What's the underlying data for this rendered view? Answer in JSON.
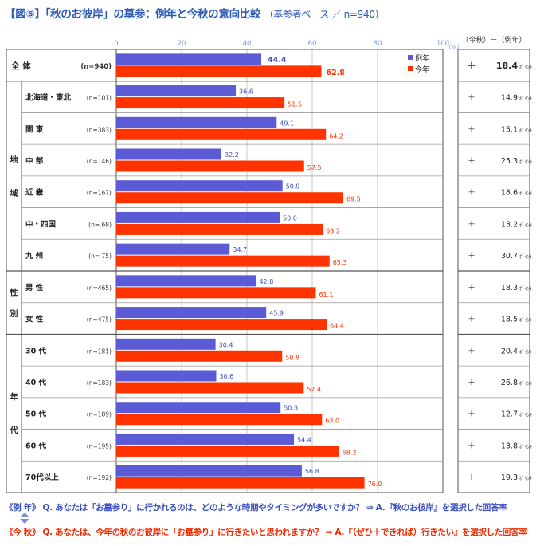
{
  "title": {
    "main": "【図⑤】「秋のお彼岸」の墓参：例年と今秋の意向比較",
    "sub": "（基参者ベース ／ n=940）"
  },
  "header_diff": "（今秋）－（例年）",
  "axis_unit": "（%）",
  "diff_unit": "ﾎﾟｲﾝﾄ",
  "diff_sign": "＋",
  "notes": {
    "line1_tag": "《例 年》",
    "line1_text": "Q. あなたは「お墓参り」に行かれるのは、どのような時期やタイミングが多いですか？ ⇒ A.『秋のお彼岸』を選択した回答率",
    "line2_tag": "《今 秋》",
    "line2_text": "Q. あなたは、今年の秋のお彼岸に「お墓参り」に行きたいと思われますか？ ⇒ A.『（ぜひ＋できれば）行きたい』を選択した回答率"
  },
  "colors": {
    "usual": "#5b5bd6",
    "this_fall": "#ff3300",
    "title": "#2c59b8",
    "usual_text": "#3a4fc0",
    "grid": "#c8c8c8",
    "border": "#555555"
  },
  "chart_data": {
    "type": "bar",
    "orientation": "horizontal",
    "xlim": [
      0,
      100
    ],
    "xticks": [
      0,
      20,
      40,
      60,
      80,
      100
    ],
    "legend": {
      "position": "top-right",
      "entries": [
        "例年",
        "今年"
      ]
    },
    "groups": [
      {
        "label": "",
        "rows": [
          0
        ]
      },
      {
        "label": "地域",
        "rows": [
          1,
          2,
          3,
          4,
          5,
          6
        ]
      },
      {
        "label": "性別",
        "rows": [
          7,
          8
        ]
      },
      {
        "label": "年代",
        "rows": [
          9,
          10,
          11,
          12,
          13
        ]
      }
    ],
    "categories": [
      {
        "label": "全 体",
        "n": "(n=940)",
        "total": true
      },
      {
        "label": "北海道・東北",
        "n": "(n=101)"
      },
      {
        "label": "関 東",
        "n": "(n=383)"
      },
      {
        "label": "中 部",
        "n": "(n=146)"
      },
      {
        "label": "近 畿",
        "n": "(n=167)"
      },
      {
        "label": "中・四国",
        "n": "(n= 68)"
      },
      {
        "label": "九 州",
        "n": "(n= 75)"
      },
      {
        "label": "男 性",
        "n": "(n=465)"
      },
      {
        "label": "女 性",
        "n": "(n=475)"
      },
      {
        "label": "30 代",
        "n": "(n=181)"
      },
      {
        "label": "40 代",
        "n": "(n=183)"
      },
      {
        "label": "50 代",
        "n": "(n=189)"
      },
      {
        "label": "60 代",
        "n": "(n=195)"
      },
      {
        "label": "70代以上",
        "n": "(n=192)"
      }
    ],
    "series": [
      {
        "name": "例年",
        "values": [
          44.4,
          36.6,
          49.1,
          32.2,
          50.9,
          50.0,
          34.7,
          42.8,
          45.9,
          30.4,
          30.6,
          50.3,
          54.4,
          56.8
        ]
      },
      {
        "name": "今年",
        "values": [
          62.8,
          51.5,
          64.2,
          57.5,
          69.5,
          63.2,
          65.3,
          61.1,
          64.4,
          50.8,
          57.4,
          63.0,
          68.2,
          76.0
        ]
      }
    ],
    "difference": [
      18.4,
      14.9,
      15.1,
      25.3,
      18.6,
      13.2,
      30.7,
      18.3,
      18.5,
      20.4,
      26.8,
      12.7,
      13.8,
      19.3
    ]
  }
}
